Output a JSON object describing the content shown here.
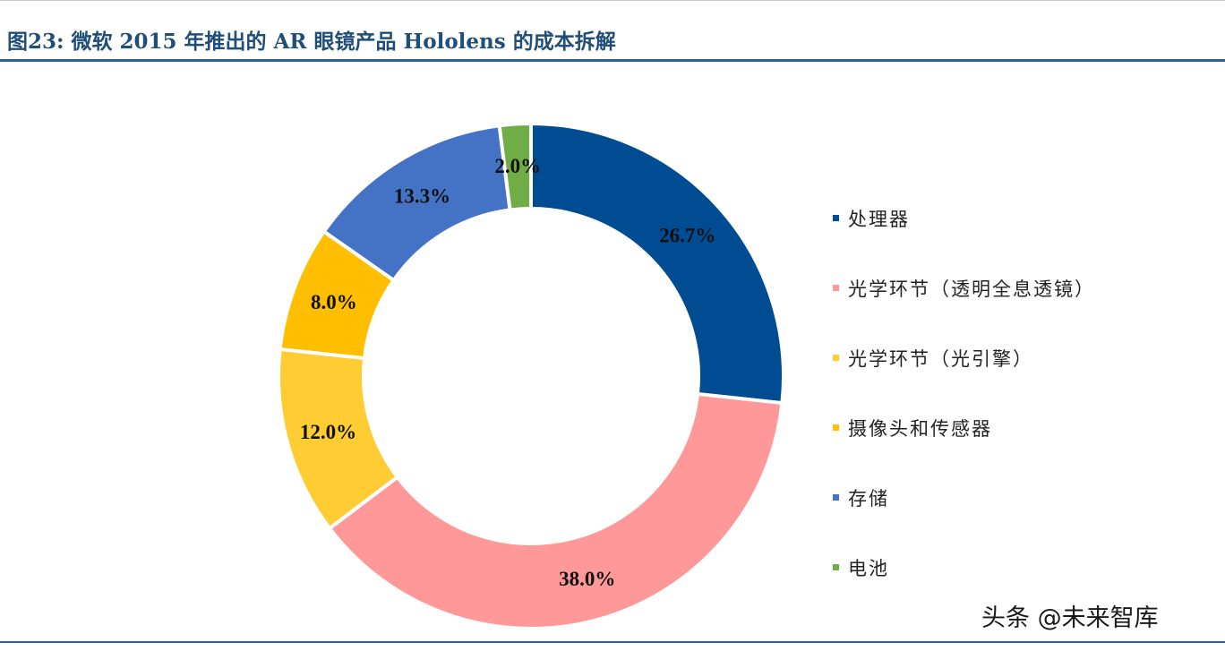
{
  "figure": {
    "title": "图23: 微软 2015 年推出的 AR 眼镜产品 Hololens 的成本拆解"
  },
  "chart_data": {
    "type": "pie",
    "donut": true,
    "legend_position": "right",
    "categories": [
      "处理器",
      "光学环节（透明全息透镜）",
      "光学环节（光引擎）",
      "摄像头和传感器",
      "存储",
      "电池"
    ],
    "values": [
      26.7,
      38.0,
      12.0,
      8.0,
      13.3,
      2.0
    ],
    "labels": [
      "26.7%",
      "38.0%",
      "12.0%",
      "8.0%",
      "13.3%",
      "2.0%"
    ],
    "colors": [
      "#004c93",
      "#ff9999",
      "#ffcd33",
      "#ffbf00",
      "#4472c4",
      "#70ad47"
    ]
  },
  "watermark": "头条 @未来智库"
}
